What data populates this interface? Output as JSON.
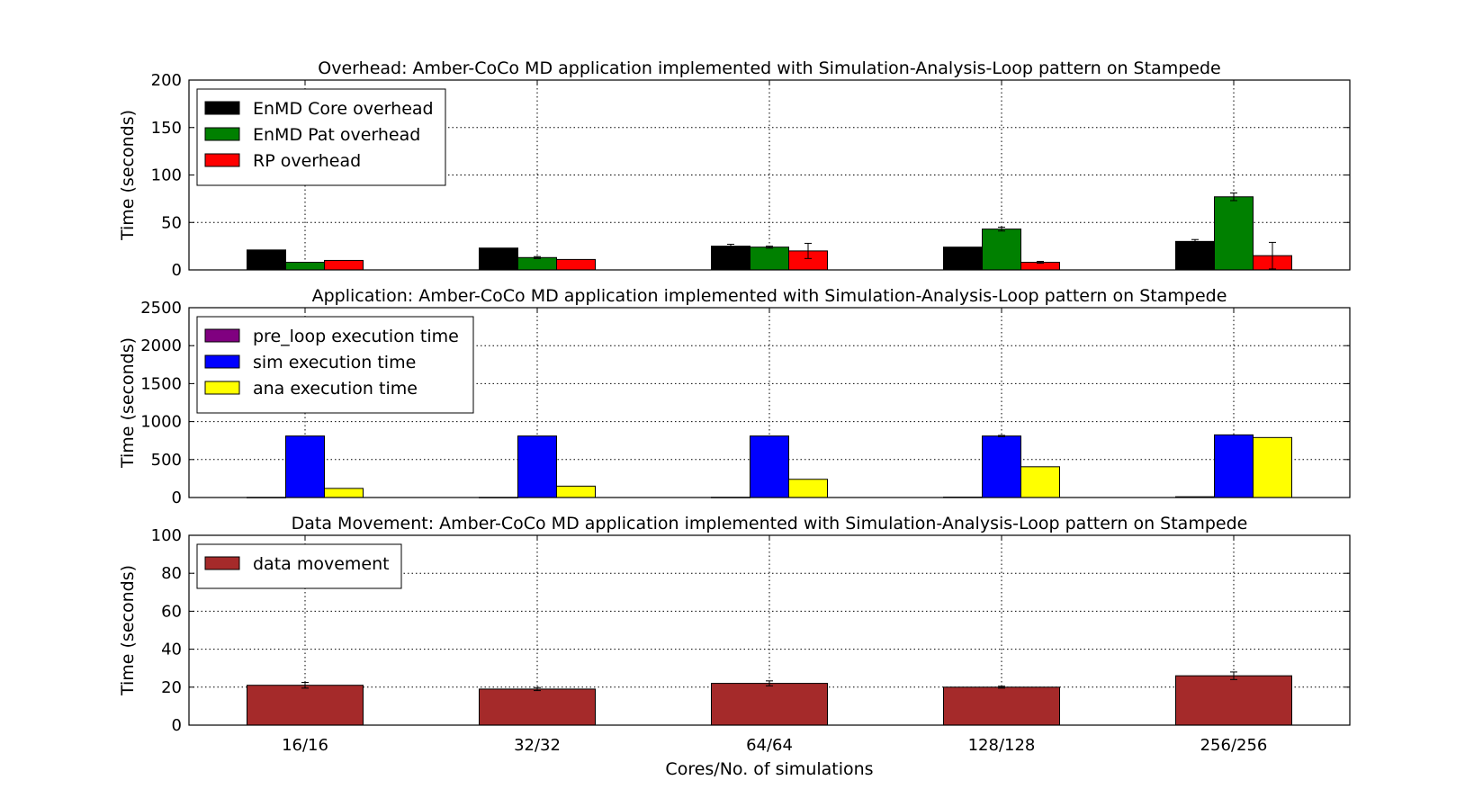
{
  "chart_data": [
    {
      "type": "bar",
      "title": "Overhead: Amber-CoCo MD application implemented with Simulation-Analysis-Loop pattern on Stampede",
      "xlabel": "",
      "ylabel": "Time (seconds)",
      "ylim": [
        0,
        200
      ],
      "yticks": [
        0,
        50,
        100,
        150,
        200
      ],
      "grid": true,
      "legend_position": "top-left",
      "categories": [
        "16/16",
        "32/32",
        "64/64",
        "128/128",
        "256/256"
      ],
      "series": [
        {
          "name": "EnMD Core overhead",
          "color": "#000000",
          "values": [
            21,
            23,
            25,
            24,
            30
          ],
          "errors": [
            0,
            0,
            2,
            0,
            2
          ]
        },
        {
          "name": "EnMD Pat overhead",
          "color": "#008000",
          "values": [
            8,
            13,
            24,
            43,
            77
          ],
          "errors": [
            0,
            1,
            1,
            2,
            4
          ]
        },
        {
          "name": "RP overhead",
          "color": "#ff0000",
          "values": [
            10,
            11,
            20,
            8,
            15
          ],
          "errors": [
            0,
            0,
            8,
            1,
            14
          ]
        }
      ]
    },
    {
      "type": "bar",
      "title": "Application: Amber-CoCo MD application implemented with Simulation-Analysis-Loop pattern on Stampede",
      "xlabel": "",
      "ylabel": "Time (seconds)",
      "ylim": [
        0,
        2500
      ],
      "yticks": [
        0,
        500,
        1000,
        1500,
        2000,
        2500
      ],
      "grid": true,
      "legend_position": "top-left",
      "categories": [
        "16/16",
        "32/32",
        "64/64",
        "128/128",
        "256/256"
      ],
      "series": [
        {
          "name": "pre_loop execution time",
          "color": "#800080",
          "values": [
            2,
            2,
            3,
            5,
            10
          ],
          "errors": [
            0,
            0,
            0,
            0,
            0
          ]
        },
        {
          "name": "sim execution time",
          "color": "#0000ff",
          "values": [
            810,
            810,
            810,
            810,
            825
          ],
          "errors": [
            0,
            0,
            0,
            8,
            0
          ]
        },
        {
          "name": "ana execution time",
          "color": "#ffff00",
          "values": [
            120,
            150,
            240,
            405,
            790
          ],
          "errors": [
            0,
            0,
            0,
            0,
            0
          ]
        }
      ]
    },
    {
      "type": "bar",
      "title": "Data Movement: Amber-CoCo MD application implemented with Simulation-Analysis-Loop pattern on Stampede",
      "xlabel": "Cores/No. of simulations",
      "ylabel": "Time (seconds)",
      "ylim": [
        0,
        100
      ],
      "yticks": [
        0,
        20,
        40,
        60,
        80,
        100
      ],
      "grid": true,
      "legend_position": "top-left",
      "categories": [
        "16/16",
        "32/32",
        "64/64",
        "128/128",
        "256/256"
      ],
      "series": [
        {
          "name": "data movement",
          "color": "#a52a2a",
          "values": [
            21,
            19,
            22,
            20,
            26
          ],
          "errors": [
            1.5,
            0.8,
            1.3,
            0.5,
            2
          ]
        }
      ]
    }
  ]
}
